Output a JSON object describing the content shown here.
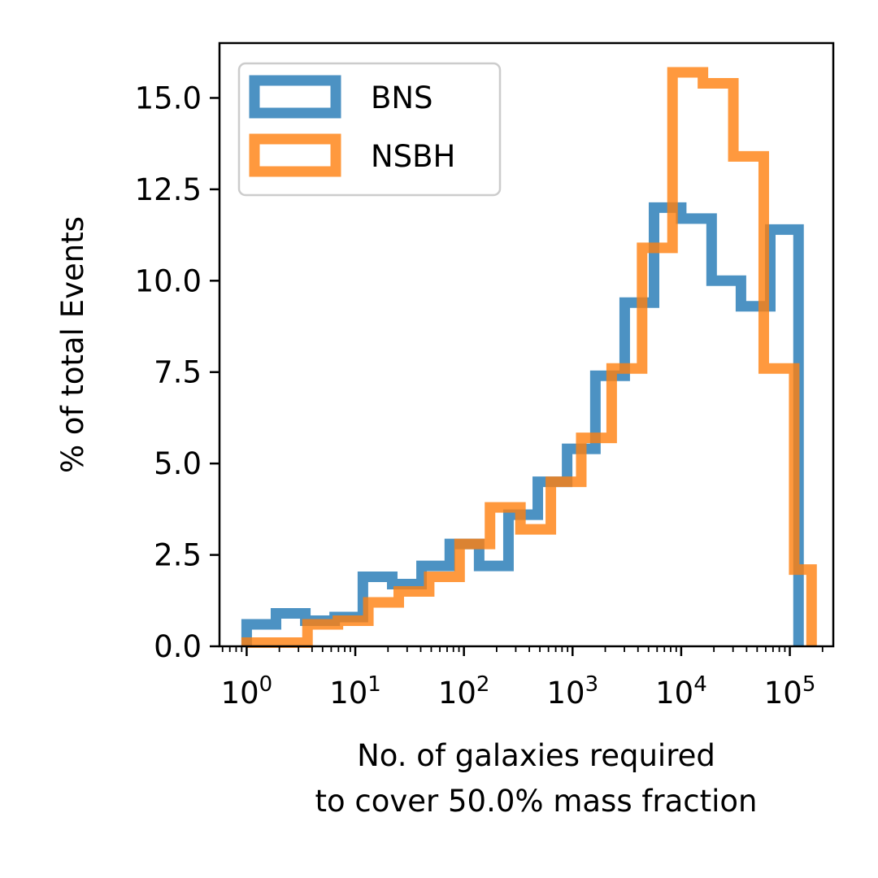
{
  "chart_data": {
    "type": "histogram-step",
    "title": "",
    "xlabel_line1": "No. of galaxies required",
    "xlabel_line2": "to cover 50.0% mass fraction",
    "ylabel": "% of total Events",
    "xscale": "log",
    "xlim_log10": [
      -0.25,
      5.4
    ],
    "ylim": [
      0,
      16.5
    ],
    "yticks": [
      {
        "value": 0.0,
        "label": "0.0"
      },
      {
        "value": 2.5,
        "label": "2.5"
      },
      {
        "value": 5.0,
        "label": "5.0"
      },
      {
        "value": 7.5,
        "label": "7.5"
      },
      {
        "value": 10.0,
        "label": "10.0"
      },
      {
        "value": 12.5,
        "label": "12.5"
      },
      {
        "value": 15.0,
        "label": "15.0"
      }
    ],
    "xticks": [
      {
        "log10": 0,
        "base": "10",
        "exp": "0"
      },
      {
        "log10": 1,
        "base": "10",
        "exp": "1"
      },
      {
        "log10": 2,
        "base": "10",
        "exp": "2"
      },
      {
        "log10": 3,
        "base": "10",
        "exp": "3"
      },
      {
        "log10": 4,
        "base": "10",
        "exp": "4"
      },
      {
        "log10": 5,
        "base": "10",
        "exp": "5"
      }
    ],
    "legend_position": "upper-left",
    "series": [
      {
        "name": "BNS",
        "color": "#1f77b4",
        "opacity": 0.8,
        "bin_edges_log10": [
          0.0,
          0.27,
          0.54,
          0.81,
          1.07,
          1.34,
          1.61,
          1.87,
          2.14,
          2.41,
          2.68,
          2.95,
          3.21,
          3.48,
          3.75,
          4.0,
          4.28,
          4.55,
          4.82,
          5.08
        ],
        "values": [
          0.6,
          0.9,
          0.7,
          0.8,
          1.9,
          1.7,
          2.2,
          2.8,
          2.2,
          3.6,
          4.5,
          5.4,
          7.4,
          9.4,
          12.0,
          11.7,
          10.0,
          9.3,
          11.4
        ]
      },
      {
        "name": "NSBH",
        "color": "#ff7f0e",
        "opacity": 0.8,
        "bin_edges_log10": [
          0.0,
          0.28,
          0.56,
          0.84,
          1.12,
          1.4,
          1.68,
          1.96,
          2.24,
          2.52,
          2.8,
          3.08,
          3.36,
          3.64,
          3.92,
          4.2,
          4.48,
          4.76,
          5.04,
          5.2
        ],
        "values": [
          0.1,
          0.1,
          0.6,
          0.7,
          1.2,
          1.5,
          1.9,
          2.8,
          3.8,
          3.2,
          4.5,
          5.7,
          7.6,
          10.9,
          15.7,
          15.4,
          13.4,
          7.6,
          2.1
        ]
      }
    ]
  }
}
